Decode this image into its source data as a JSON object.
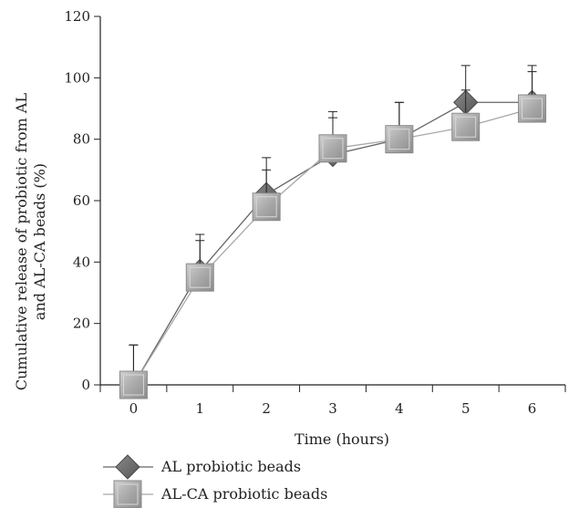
{
  "chart_data": {
    "type": "line",
    "title": "",
    "xlabel": "Time (hours)",
    "ylabel_lines": [
      "Cumulative release of probiotic from AL",
      "and AL-CA beads (%)"
    ],
    "x": [
      0,
      1,
      2,
      3,
      4,
      5,
      6
    ],
    "xlim": [
      0,
      6
    ],
    "ylim": [
      0,
      120
    ],
    "yticks": [
      0,
      20,
      40,
      60,
      80,
      100,
      120
    ],
    "grid": false,
    "legend_position": "bottom-left",
    "series": [
      {
        "name": "AL probiotic beads",
        "marker": "diamond",
        "color": "#666666",
        "values": [
          0,
          37,
          62,
          75,
          80,
          92,
          92
        ],
        "error_plus": [
          13,
          12,
          12,
          12,
          12,
          12,
          12
        ]
      },
      {
        "name": "AL-CA probiotic beads",
        "marker": "square",
        "color": "#a8a8a8",
        "values": [
          0,
          35,
          58,
          77,
          80,
          84,
          90
        ],
        "error_plus": [
          13,
          12,
          12,
          12,
          12,
          12,
          12
        ]
      }
    ]
  }
}
